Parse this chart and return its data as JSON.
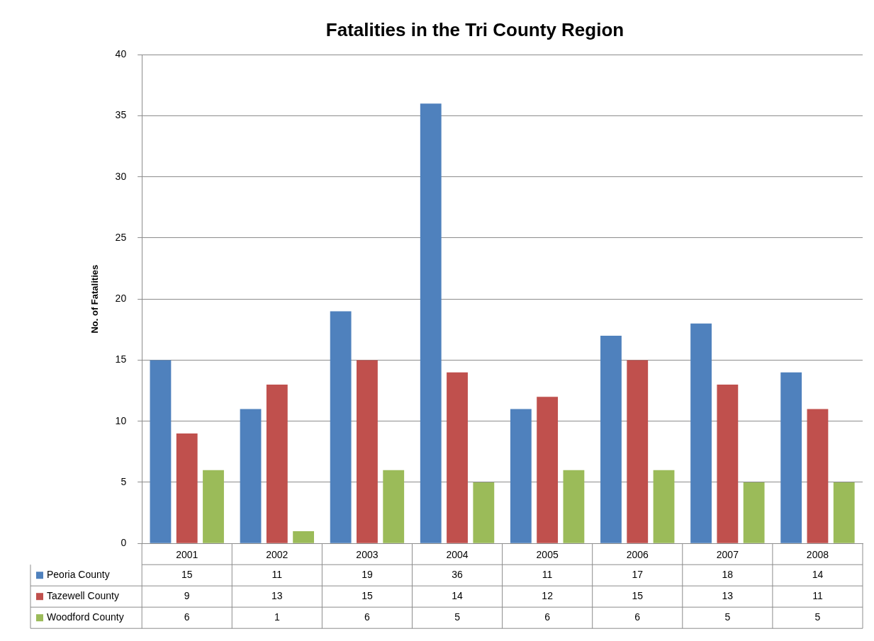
{
  "chart_data": {
    "type": "bar",
    "title": "Fatalities in the Tri County Region",
    "ylabel": "No. of Fatalities",
    "categories": [
      "2001",
      "2002",
      "2003",
      "2004",
      "2005",
      "2006",
      "2007",
      "2008"
    ],
    "series": [
      {
        "name": "Peoria County",
        "color": "#4f81bd",
        "values": [
          15,
          11,
          19,
          36,
          11,
          17,
          18,
          14
        ]
      },
      {
        "name": "Tazewell County",
        "color": "#c0504d",
        "values": [
          9,
          13,
          15,
          14,
          12,
          15,
          13,
          11
        ]
      },
      {
        "name": "Woodford County",
        "color": "#9bbb59",
        "values": [
          6,
          1,
          6,
          5,
          6,
          6,
          5,
          5
        ]
      }
    ],
    "ylim": [
      0,
      40
    ],
    "yticks": [
      0,
      5,
      10,
      15,
      20,
      25,
      30,
      35,
      40
    ],
    "grid": "y",
    "legend": "bottom",
    "data_labels": true
  }
}
